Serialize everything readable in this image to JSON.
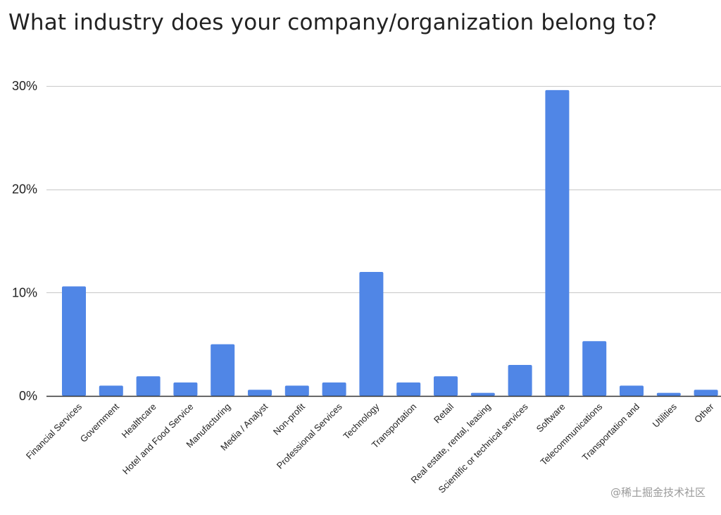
{
  "title": "What industry does your company/organization belong to?",
  "watermark": "@稀土掘金技术社区",
  "colors": {
    "bar": "#5086e6",
    "grid": "#c8c8c8",
    "axis": "#333333",
    "text": "#222222"
  },
  "chart_data": {
    "type": "bar",
    "title": "What industry does your company/organization belong to?",
    "xlabel": "",
    "ylabel": "",
    "ylim": [
      0,
      30
    ],
    "yticks": [
      0,
      10,
      20,
      30
    ],
    "ytick_labels": [
      "0%",
      "10%",
      "20%",
      "30%"
    ],
    "grid": true,
    "legend": "none",
    "categories": [
      "Financial Services",
      "Government",
      "Healthcare",
      "Hotel and Food Service",
      "Manufacturing",
      "Media / Analyst",
      "Non-profit",
      "Professional Services",
      "Technology",
      "Transportation",
      "Retail",
      "Real estate, rental, leasing",
      "Scientific or technical services",
      "Software",
      "Telecommunications",
      "Transportation and",
      "Utilities",
      "Other"
    ],
    "values": [
      10.6,
      1.0,
      1.9,
      1.3,
      5.0,
      0.6,
      1.0,
      1.3,
      12.0,
      1.3,
      1.9,
      0.3,
      3.0,
      29.6,
      5.3,
      1.0,
      0.3,
      0.6
    ]
  }
}
